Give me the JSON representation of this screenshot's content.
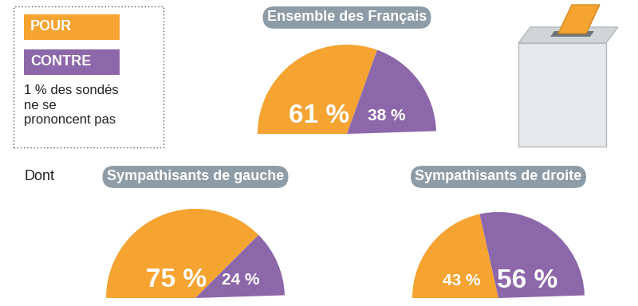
{
  "chart_data": [
    {
      "type": "pie",
      "title": "Ensemble des Français",
      "categories": [
        "POUR",
        "CONTRE"
      ],
      "values": [
        61,
        38
      ],
      "colors": [
        "#f5a331",
        "#8c67a9"
      ],
      "value_labels": [
        "61 %",
        "38 %"
      ],
      "data_labels": true,
      "legend": "upper left",
      "annotation": "1 % des sondés ne se prononcent pas"
    },
    {
      "type": "pie",
      "title": "Sympathisants de gauche",
      "categories": [
        "POUR",
        "CONTRE"
      ],
      "values": [
        75,
        24
      ],
      "colors": [
        "#f5a331",
        "#8c67a9"
      ],
      "value_labels": [
        "75 %",
        "24 %"
      ],
      "data_labels": true,
      "annotation": "Dont"
    },
    {
      "type": "pie",
      "title": "Sympathisants de droite",
      "categories": [
        "POUR",
        "CONTRE"
      ],
      "values": [
        43,
        56
      ],
      "colors": [
        "#f5a331",
        "#8c67a9"
      ],
      "value_labels": [
        "43 %",
        "56 %"
      ],
      "data_labels": true
    }
  ]
}
